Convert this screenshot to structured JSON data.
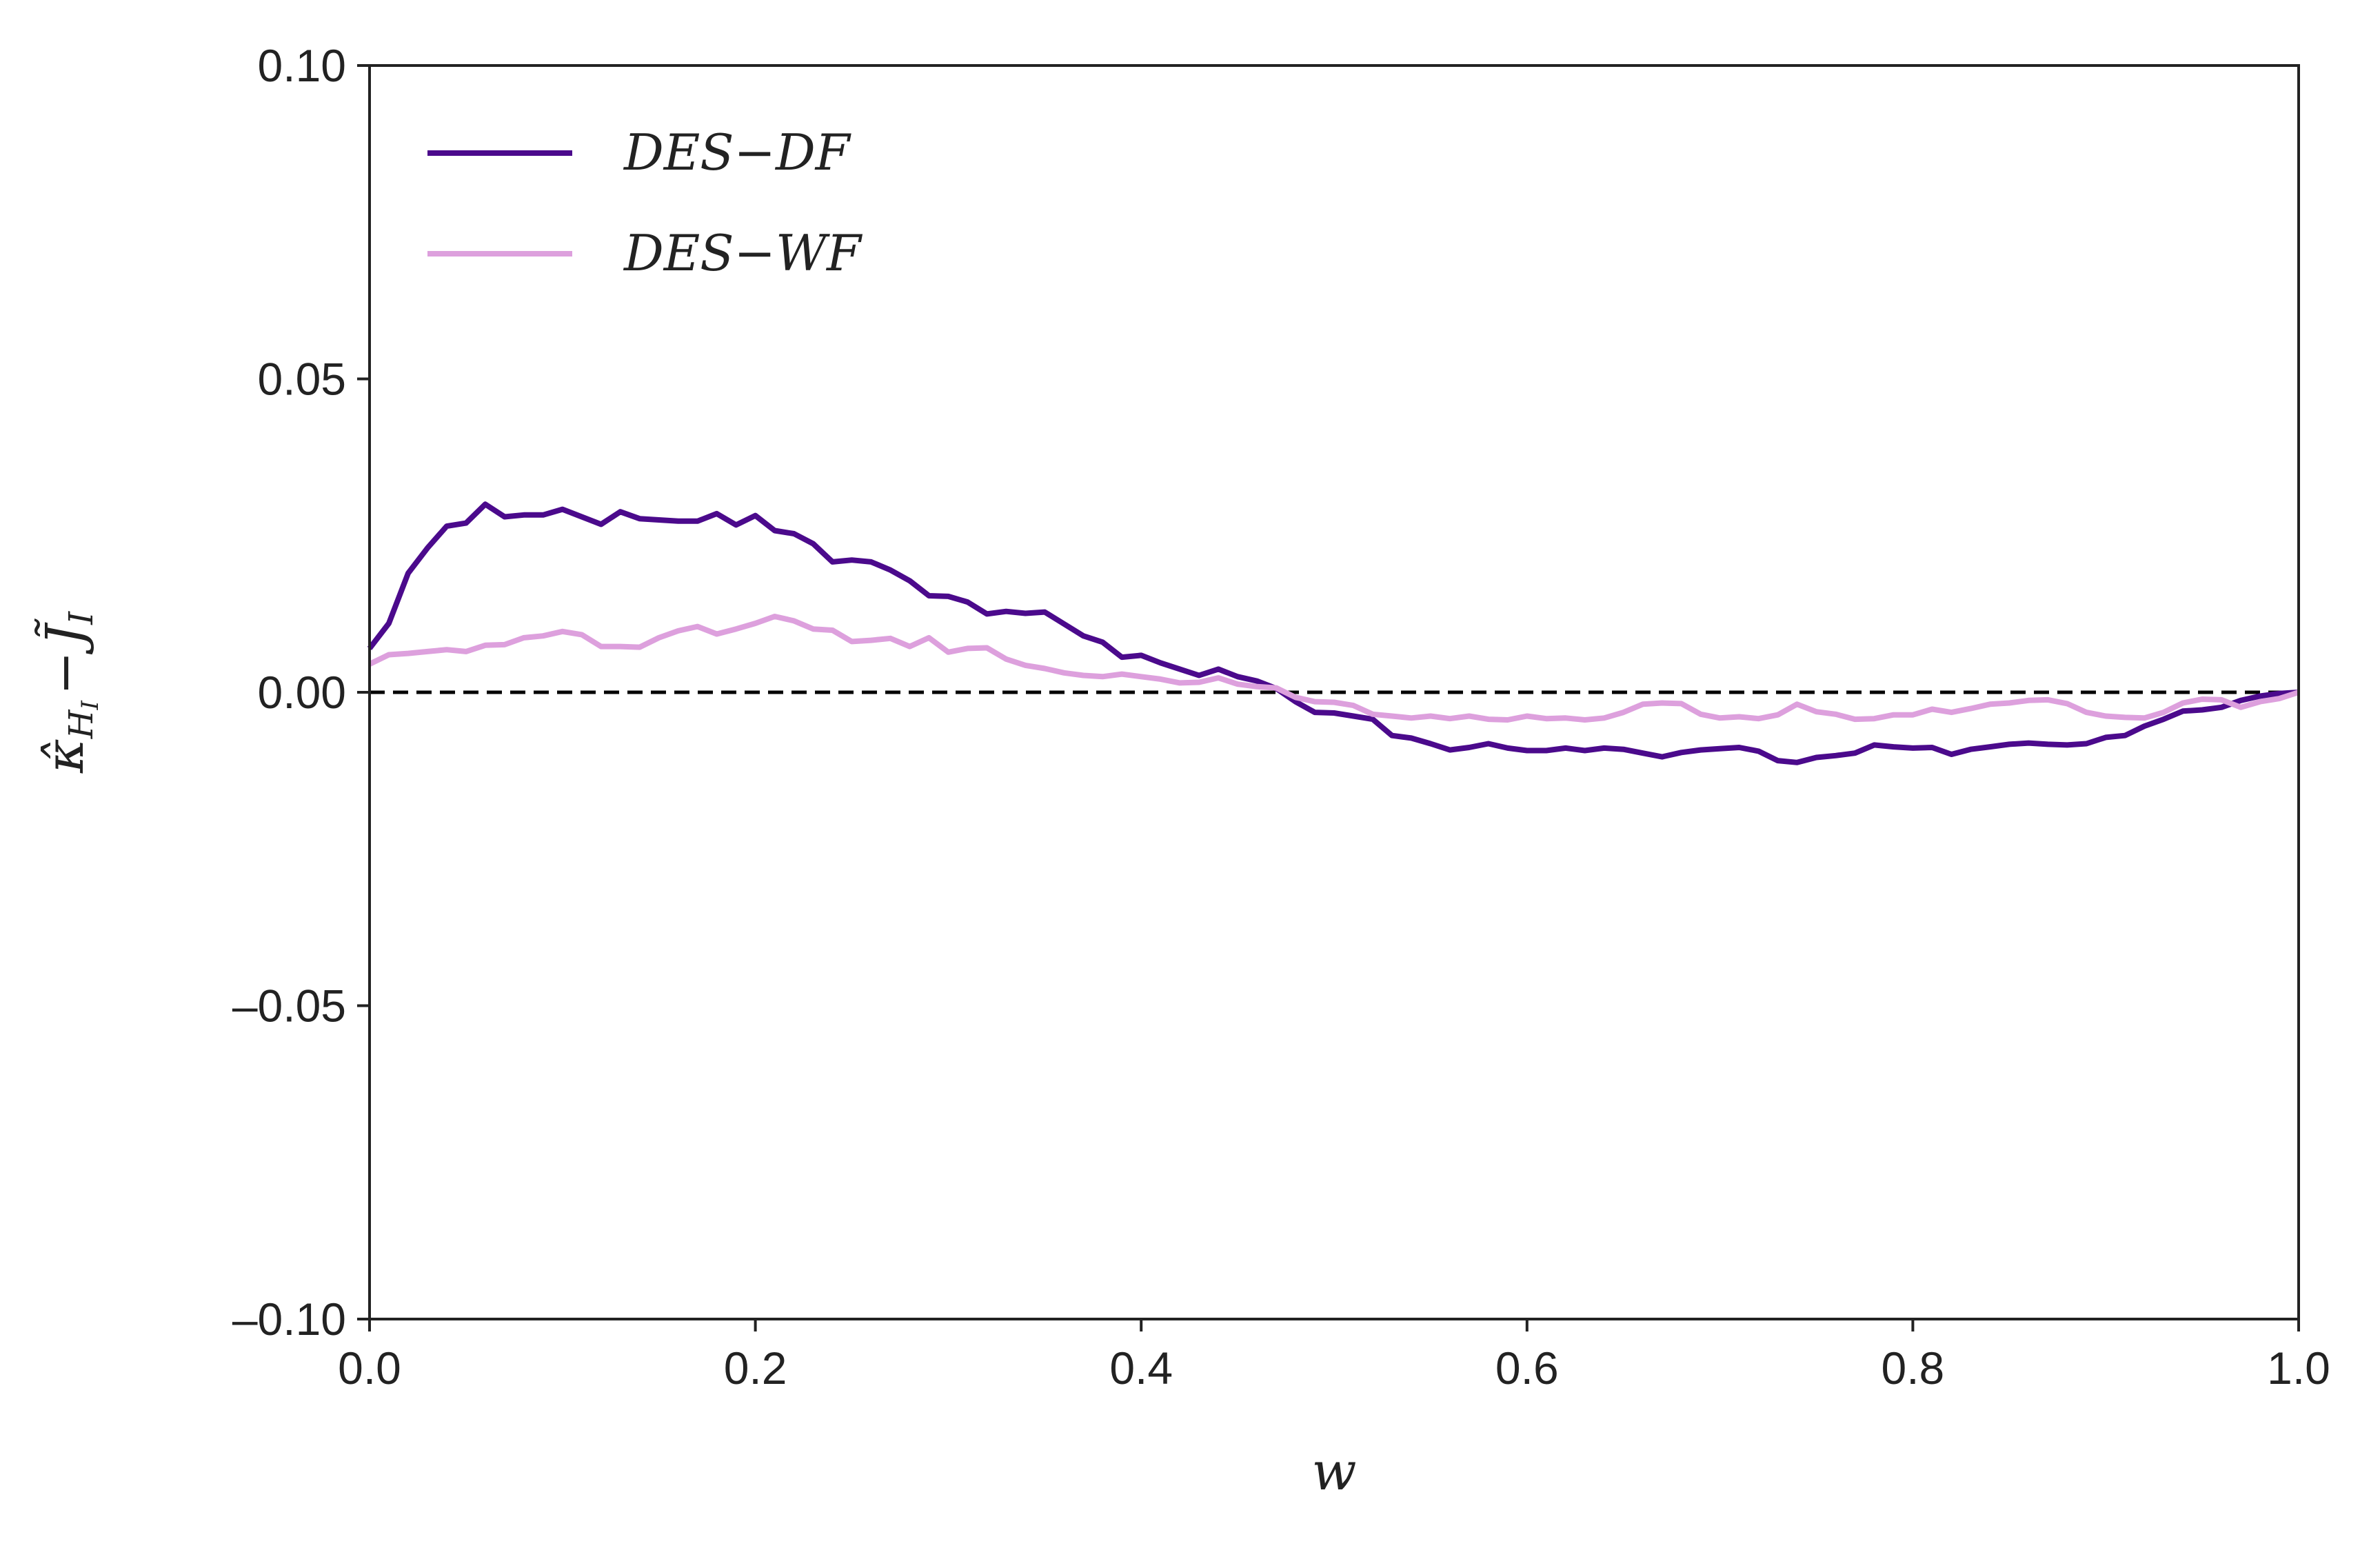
{
  "chart_data": {
    "type": "line",
    "title": "",
    "xlabel": "w",
    "ylabel": {
      "base": "κ̂",
      "sub": "H",
      "subsub": "I",
      "minus": "−",
      "j": "J̃",
      "jsub": "I"
    },
    "xlim": [
      0.0,
      1.0
    ],
    "ylim": [
      -0.1,
      0.1
    ],
    "x_ticks": [
      0.0,
      0.2,
      0.4,
      0.6,
      0.8,
      1.0
    ],
    "x_tick_labels": [
      "0.0",
      "0.2",
      "0.4",
      "0.6",
      "0.8",
      "1.0"
    ],
    "y_ticks": [
      -0.1,
      -0.05,
      0.0,
      0.05,
      0.1
    ],
    "y_tick_labels": [
      "–0.10",
      "–0.05",
      "0.00",
      "0.05",
      "0.10"
    ],
    "grid": false,
    "legend_position": "top-left",
    "reference_line": {
      "y": 0.0,
      "style": "dashed",
      "color": "#000000"
    },
    "series": [
      {
        "name": "DES−DF",
        "color": "#4b0a8c",
        "x": [
          0.0,
          0.01,
          0.02,
          0.03,
          0.04,
          0.05,
          0.06,
          0.07,
          0.08,
          0.09,
          0.1,
          0.11,
          0.12,
          0.13,
          0.14,
          0.15,
          0.16,
          0.17,
          0.18,
          0.19,
          0.2,
          0.21,
          0.22,
          0.23,
          0.24,
          0.25,
          0.26,
          0.27,
          0.28,
          0.29,
          0.3,
          0.31,
          0.32,
          0.33,
          0.34,
          0.35,
          0.36,
          0.37,
          0.38,
          0.39,
          0.4,
          0.41,
          0.42,
          0.43,
          0.44,
          0.45,
          0.46,
          0.47,
          0.48,
          0.49,
          0.5,
          0.51,
          0.52,
          0.53,
          0.54,
          0.55,
          0.56,
          0.57,
          0.58,
          0.59,
          0.6,
          0.61,
          0.62,
          0.63,
          0.64,
          0.65,
          0.66,
          0.67,
          0.68,
          0.69,
          0.7,
          0.71,
          0.72,
          0.73,
          0.74,
          0.75,
          0.76,
          0.77,
          0.78,
          0.79,
          0.8,
          0.81,
          0.82,
          0.83,
          0.84,
          0.85,
          0.86,
          0.87,
          0.88,
          0.89,
          0.9,
          0.91,
          0.92,
          0.93,
          0.94,
          0.95,
          0.96,
          0.97,
          0.98,
          0.99,
          1.0
        ],
        "y": [
          0.007,
          0.011,
          0.019,
          0.023,
          0.0265,
          0.027,
          0.03,
          0.028,
          0.0283,
          0.0283,
          0.0292,
          0.028,
          0.0268,
          0.0288,
          0.0277,
          0.0275,
          0.0273,
          0.0273,
          0.0285,
          0.0267,
          0.0282,
          0.0258,
          0.0253,
          0.0237,
          0.0208,
          0.0211,
          0.0208,
          0.0195,
          0.0178,
          0.0154,
          0.0153,
          0.0144,
          0.0125,
          0.0129,
          0.0126,
          0.0128,
          0.0109,
          0.009,
          0.008,
          0.0056,
          0.0059,
          0.0047,
          0.0037,
          0.0027,
          0.0037,
          0.0025,
          0.0018,
          0.0006,
          -0.0015,
          -0.0032,
          -0.0033,
          -0.0038,
          -0.0043,
          -0.0069,
          -0.0073,
          -0.0082,
          -0.0092,
          -0.0088,
          -0.0082,
          -0.0089,
          -0.0093,
          -0.0093,
          -0.0089,
          -0.0093,
          -0.0089,
          -0.0091,
          -0.0097,
          -0.0103,
          -0.0096,
          -0.0092,
          -0.009,
          -0.0088,
          -0.0094,
          -0.0109,
          -0.0112,
          -0.0104,
          -0.0101,
          -0.0097,
          -0.0084,
          -0.0087,
          -0.0089,
          -0.0088,
          -0.0099,
          -0.0091,
          -0.0087,
          -0.0083,
          -0.0081,
          -0.0083,
          -0.0084,
          -0.0082,
          -0.0072,
          -0.0069,
          -0.0054,
          -0.0043,
          -0.003,
          -0.0028,
          -0.0024,
          -0.0013,
          -0.0006,
          -0.0002,
          0.0
        ]
      },
      {
        "name": "DES−WF",
        "color": "#dda0dd",
        "x": [
          0.0,
          0.01,
          0.02,
          0.03,
          0.04,
          0.05,
          0.06,
          0.07,
          0.08,
          0.09,
          0.1,
          0.11,
          0.12,
          0.13,
          0.14,
          0.15,
          0.16,
          0.17,
          0.18,
          0.19,
          0.2,
          0.21,
          0.22,
          0.23,
          0.24,
          0.25,
          0.26,
          0.27,
          0.28,
          0.29,
          0.3,
          0.31,
          0.32,
          0.33,
          0.34,
          0.35,
          0.36,
          0.37,
          0.38,
          0.39,
          0.4,
          0.41,
          0.42,
          0.43,
          0.44,
          0.45,
          0.46,
          0.47,
          0.48,
          0.49,
          0.5,
          0.51,
          0.52,
          0.53,
          0.54,
          0.55,
          0.56,
          0.57,
          0.58,
          0.59,
          0.6,
          0.61,
          0.62,
          0.63,
          0.64,
          0.65,
          0.66,
          0.67,
          0.68,
          0.69,
          0.7,
          0.71,
          0.72,
          0.73,
          0.74,
          0.75,
          0.76,
          0.77,
          0.78,
          0.79,
          0.8,
          0.81,
          0.82,
          0.83,
          0.84,
          0.85,
          0.86,
          0.87,
          0.88,
          0.89,
          0.9,
          0.91,
          0.92,
          0.93,
          0.94,
          0.95,
          0.96,
          0.97,
          0.98,
          0.99,
          1.0
        ],
        "y": [
          0.0045,
          0.006,
          0.0062,
          0.0065,
          0.0068,
          0.0065,
          0.0075,
          0.0076,
          0.0087,
          0.009,
          0.0097,
          0.0092,
          0.0073,
          0.0073,
          0.0072,
          0.0087,
          0.0098,
          0.0105,
          0.0093,
          0.0101,
          0.011,
          0.0121,
          0.0114,
          0.0101,
          0.0099,
          0.0081,
          0.0083,
          0.0086,
          0.0073,
          0.0087,
          0.0064,
          0.007,
          0.0071,
          0.0053,
          0.0043,
          0.0038,
          0.0031,
          0.0027,
          0.0025,
          0.0029,
          0.0025,
          0.0021,
          0.0015,
          0.0016,
          0.0023,
          0.0013,
          0.0009,
          0.0007,
          -0.0008,
          -0.0015,
          -0.0016,
          -0.0021,
          -0.0035,
          -0.0038,
          -0.0041,
          -0.0038,
          -0.0042,
          -0.0038,
          -0.0043,
          -0.0044,
          -0.0038,
          -0.0042,
          -0.0041,
          -0.0044,
          -0.0041,
          -0.0032,
          -0.0019,
          -0.0017,
          -0.0018,
          -0.0035,
          -0.0041,
          -0.0039,
          -0.0042,
          -0.0036,
          -0.0019,
          -0.0031,
          -0.0035,
          -0.0043,
          -0.0042,
          -0.0036,
          -0.0036,
          -0.0027,
          -0.0032,
          -0.0026,
          -0.0019,
          -0.0017,
          -0.0013,
          -0.0012,
          -0.0018,
          -0.0032,
          -0.0038,
          -0.004,
          -0.0041,
          -0.0032,
          -0.0017,
          -0.0011,
          -0.0012,
          -0.0024,
          -0.0015,
          -0.001,
          0.0
        ]
      }
    ]
  }
}
